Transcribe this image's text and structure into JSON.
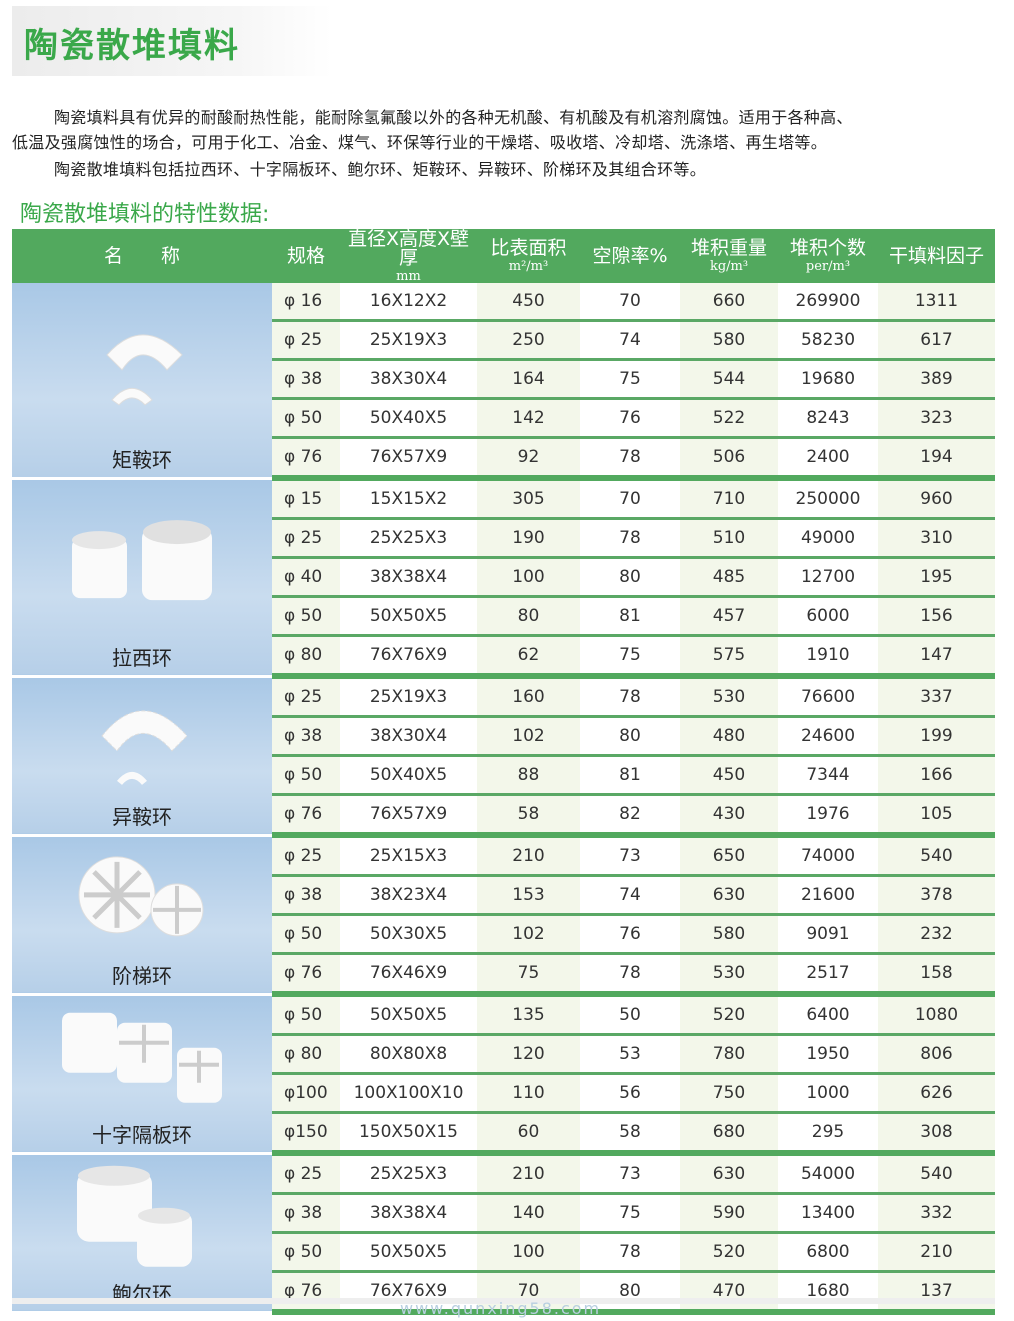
{
  "page_title": "陶瓷散堆填料",
  "intro": [
    "陶瓷填料具有优异的耐酸耐热性能，能耐除氢氟酸以外的各种无机酸、有机酸及有机溶剂腐蚀。适用于各种高、",
    "低温及强腐蚀性的场合，可用于化工、冶金、煤气、环保等行业的干燥塔、吸收塔、冷却塔、洗涤塔、再生塔等。",
    "陶瓷散堆填料包括拉西环、十字隔板环、鲍尔环、矩鞍环、异鞍环、阶梯环及其组合环等。"
  ],
  "table_title": "陶瓷散堆填料的特性数据:",
  "headers": {
    "name": "名　　称",
    "spec": "规格",
    "dims": "直径X高度X壁厚",
    "dims_unit": "mm",
    "area": "比表面积",
    "area_unit": "m²/m³",
    "void": "空隙率%",
    "weight": "堆积重量",
    "weight_unit": "kg/m³",
    "count": "堆积个数",
    "count_unit": "per/m³",
    "factor": "干填料因子"
  },
  "watermark": "www.qunxing58.com",
  "colors": {
    "accent": "#52a95e",
    "title": "#3aa84a"
  },
  "groups": [
    {
      "name": "矩鞍环",
      "icon": "saddle-ring-icon",
      "rows": [
        [
          "φ 16",
          "16X12X2",
          "450",
          "70",
          "660",
          "269900",
          "1311"
        ],
        [
          "φ 25",
          "25X19X3",
          "250",
          "74",
          "580",
          "58230",
          "617"
        ],
        [
          "φ 38",
          "38X30X4",
          "164",
          "75",
          "544",
          "19680",
          "389"
        ],
        [
          "φ 50",
          "50X40X5",
          "142",
          "76",
          "522",
          "8243",
          "323"
        ],
        [
          "φ 76",
          "76X57X9",
          "92",
          "78",
          "506",
          "2400",
          "194"
        ]
      ]
    },
    {
      "name": "拉西环",
      "icon": "raschig-ring-icon",
      "rows": [
        [
          "φ 15",
          "15X15X2",
          "305",
          "70",
          "710",
          "250000",
          "960"
        ],
        [
          "φ 25",
          "25X25X3",
          "190",
          "78",
          "510",
          "49000",
          "310"
        ],
        [
          "φ 40",
          "38X38X4",
          "100",
          "80",
          "485",
          "12700",
          "195"
        ],
        [
          "φ 50",
          "50X50X5",
          "80",
          "81",
          "457",
          "6000",
          "156"
        ],
        [
          "φ 80",
          "76X76X9",
          "62",
          "75",
          "575",
          "1910",
          "147"
        ]
      ]
    },
    {
      "name": "异鞍环",
      "icon": "super-saddle-icon",
      "rows": [
        [
          "φ 25",
          "25X19X3",
          "160",
          "78",
          "530",
          "76600",
          "337"
        ],
        [
          "φ 38",
          "38X30X4",
          "102",
          "80",
          "480",
          "24600",
          "199"
        ],
        [
          "φ 50",
          "50X40X5",
          "88",
          "81",
          "450",
          "7344",
          "166"
        ],
        [
          "φ 76",
          "76X57X9",
          "58",
          "82",
          "430",
          "1976",
          "105"
        ]
      ]
    },
    {
      "name": "阶梯环",
      "icon": "cascade-ring-icon",
      "rows": [
        [
          "φ 25",
          "25X15X3",
          "210",
          "73",
          "650",
          "74000",
          "540"
        ],
        [
          "φ 38",
          "38X23X4",
          "153",
          "74",
          "630",
          "21600",
          "378"
        ],
        [
          "φ 50",
          "50X30X5",
          "102",
          "76",
          "580",
          "9091",
          "232"
        ],
        [
          "φ 76",
          "76X46X9",
          "75",
          "78",
          "530",
          "2517",
          "158"
        ]
      ]
    },
    {
      "name": "十字隔板环",
      "icon": "cross-partition-ring-icon",
      "rows": [
        [
          "φ 50",
          "50X50X5",
          "135",
          "50",
          "520",
          "6400",
          "1080"
        ],
        [
          "φ 80",
          "80X80X8",
          "120",
          "53",
          "780",
          "1950",
          "806"
        ],
        [
          "φ100",
          "100X100X10",
          "110",
          "56",
          "750",
          "1000",
          "626"
        ],
        [
          "φ150",
          "150X50X15",
          "60",
          "58",
          "680",
          "295",
          "308"
        ]
      ]
    },
    {
      "name": "鲍尔环",
      "icon": "pall-ring-icon",
      "rows": [
        [
          "φ 25",
          "25X25X3",
          "210",
          "73",
          "630",
          "54000",
          "540"
        ],
        [
          "φ 38",
          "38X38X4",
          "140",
          "75",
          "590",
          "13400",
          "332"
        ],
        [
          "φ 50",
          "50X50X5",
          "100",
          "78",
          "520",
          "6800",
          "210"
        ],
        [
          "φ 76",
          "76X76X9",
          "70",
          "80",
          "470",
          "1680",
          "137"
        ]
      ]
    }
  ]
}
